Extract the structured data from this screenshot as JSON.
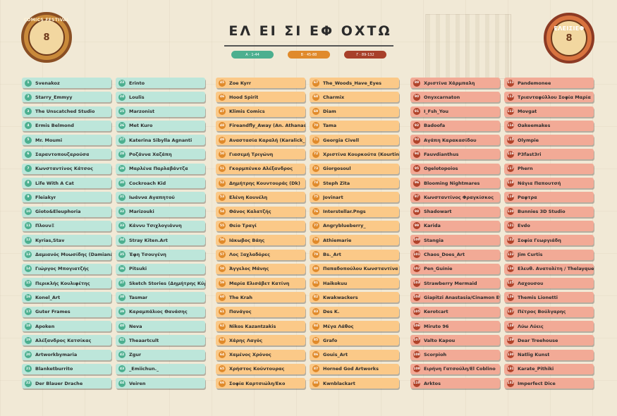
{
  "header": {
    "title": "ΕΛ ΕΙ ΣΙ ΕΦ ΟΧΤΩ",
    "logo_left_text": "COMICS FESTIVAL",
    "logo_left_mark": "8",
    "logo_right_text": "ΕΛΕΙΣΙΕΦ",
    "logo_right_mark": "8"
  },
  "legend": [
    {
      "label": "Α · 1-44",
      "color": "#4caf8f"
    },
    {
      "label": "Β · 45-88",
      "color": "#e08a2b"
    },
    {
      "label": "Γ · 89-132",
      "color": "#a8402a"
    }
  ],
  "columns": [
    {
      "theme": "teal",
      "items": [
        {
          "num": "1",
          "name": "Svenakoz"
        },
        {
          "num": "2",
          "name": "Starry_Emmyy"
        },
        {
          "num": "3",
          "name": "The Unscatched Studio"
        },
        {
          "num": "4",
          "name": "Ermis Belmond"
        },
        {
          "num": "5",
          "name": "Mr. Moumi"
        },
        {
          "num": "6",
          "name": "Σαραντοπουζαρούσα"
        },
        {
          "num": "7",
          "name": "Κωνσταντίνος Κάτσος"
        },
        {
          "num": "8",
          "name": "Life With A Cat"
        },
        {
          "num": "9",
          "name": "Fleiakyr"
        },
        {
          "num": "10",
          "name": "Gioto&Eleuphoria"
        },
        {
          "num": "11",
          "name": "ΠλουνΞ"
        },
        {
          "num": "12",
          "name": "Kyrias,Stav"
        },
        {
          "num": "13",
          "name": "Δαμιανός Μυωσίδης (Damianart)"
        },
        {
          "num": "14",
          "name": "Γιώργος Μπογιατζής"
        },
        {
          "num": "15",
          "name": "Περικλής Κουλιφέτης"
        },
        {
          "num": "16",
          "name": "Konel_Art"
        },
        {
          "num": "17",
          "name": "Guter Frames"
        },
        {
          "num": "18",
          "name": "Apoken"
        },
        {
          "num": "19",
          "name": "Αλέξανδρος Κατσίκας"
        },
        {
          "num": "20",
          "name": "Artworkbymaria"
        },
        {
          "num": "21",
          "name": "Blanketburrito"
        },
        {
          "num": "22",
          "name": "Der Blauer Drache"
        }
      ]
    },
    {
      "theme": "teal",
      "items": [
        {
          "num": "23",
          "name": "Erinto"
        },
        {
          "num": "24",
          "name": "Loulis"
        },
        {
          "num": "25",
          "name": "Marzonist"
        },
        {
          "num": "26",
          "name": "Met Kuro"
        },
        {
          "num": "27",
          "name": "Katerina Sibylla Agnanti"
        },
        {
          "num": "28",
          "name": "Ροζάννα Χαζάπη"
        },
        {
          "num": "29",
          "name": "Μαρλένα Παρλαβάντζα"
        },
        {
          "num": "30",
          "name": "Cockroach Kid"
        },
        {
          "num": "31",
          "name": "Ιωάννα Αγαπητού"
        },
        {
          "num": "32",
          "name": "Marizouki"
        },
        {
          "num": "33",
          "name": "Κάννυ Τσιχλογιάννη"
        },
        {
          "num": "34",
          "name": "Stray Kiten.Art"
        },
        {
          "num": "35",
          "name": "Έφη Τσουγένη"
        },
        {
          "num": "36",
          "name": "Pitsuki"
        },
        {
          "num": "37",
          "name": "Sketch Stories (Δημήτρης Κύρου)"
        },
        {
          "num": "38",
          "name": "Tasmar"
        },
        {
          "num": "39",
          "name": "Καραμπάλιος Θανάσης"
        },
        {
          "num": "40",
          "name": "Neva"
        },
        {
          "num": "41",
          "name": "Theaartcult"
        },
        {
          "num": "42",
          "name": "Zgur"
        },
        {
          "num": "43",
          "name": "_Emiichun._"
        },
        {
          "num": "44",
          "name": "Veiren"
        }
      ]
    },
    {
      "theme": "orange",
      "items": [
        {
          "num": "45",
          "name": "Zoe Kyrr"
        },
        {
          "num": "46",
          "name": "Hood Spirit"
        },
        {
          "num": "47",
          "name": "Klimis Comics"
        },
        {
          "num": "48",
          "name": "Fireandfly_Away (An. Athanasoula)"
        },
        {
          "num": "49",
          "name": "Αναστασία Καραλή (Karalick_)"
        },
        {
          "num": "50",
          "name": "Γιασεμή Τριγώνη"
        },
        {
          "num": "51",
          "name": "Γκορμπένκο Αλέξανδρος"
        },
        {
          "num": "52",
          "name": "Δημήτρης Κουντουράς (Dk)"
        },
        {
          "num": "53",
          "name": "Ελένη Κουνέλη"
        },
        {
          "num": "54",
          "name": "Θάνος Καλατζής"
        },
        {
          "num": "55",
          "name": "Θείο Τραγί"
        },
        {
          "num": "56",
          "name": "Ιάκωβος Βάης"
        },
        {
          "num": "57",
          "name": "Λος Ξαχλαδόρες"
        },
        {
          "num": "58",
          "name": "Άγγελος Μάνης"
        },
        {
          "num": "59",
          "name": "Μαρία Ελισάβετ Κατίνη"
        },
        {
          "num": "60",
          "name": "The Krah"
        },
        {
          "num": "61",
          "name": "Πανάγος"
        },
        {
          "num": "62",
          "name": "Nikos Kazantzakis"
        },
        {
          "num": "63",
          "name": "Χάρης Λαγός"
        },
        {
          "num": "64",
          "name": "Χαμένος Χρόνος"
        },
        {
          "num": "65",
          "name": "Χρήστος Κούντουρας"
        },
        {
          "num": "66",
          "name": "Σοφία Καρτσιώλη/Εκο"
        }
      ]
    },
    {
      "theme": "orange",
      "items": [
        {
          "num": "67",
          "name": "The_Woods_Have_Eyes"
        },
        {
          "num": "68",
          "name": "Charmix"
        },
        {
          "num": "69",
          "name": "Diam"
        },
        {
          "num": "70",
          "name": "Tama"
        },
        {
          "num": "71",
          "name": "Georgia Civell"
        },
        {
          "num": "72",
          "name": "Χριστίνα Κουρκούτα (Kourtina)"
        },
        {
          "num": "73",
          "name": "Giorgosoul"
        },
        {
          "num": "74",
          "name": "Steph Zita"
        },
        {
          "num": "75",
          "name": "Jovinart"
        },
        {
          "num": "76",
          "name": "Interstellar.Pngs"
        },
        {
          "num": "77",
          "name": "Angryblueberry_"
        },
        {
          "num": "78",
          "name": "Athiemarie"
        },
        {
          "num": "79",
          "name": "Bs._Art"
        },
        {
          "num": "80",
          "name": "Παπαδοπούλου Κωνσταντίνα"
        },
        {
          "num": "81",
          "name": "Haikokuu"
        },
        {
          "num": "82",
          "name": "Kwakwackers"
        },
        {
          "num": "83",
          "name": "Des K."
        },
        {
          "num": "84",
          "name": "Μέγα Λάθος"
        },
        {
          "num": "85",
          "name": "Grafo"
        },
        {
          "num": "86",
          "name": "Gouis_Art"
        },
        {
          "num": "87",
          "name": "Horned God Artworks"
        },
        {
          "num": "88",
          "name": "Kwnblackart"
        }
      ]
    },
    {
      "theme": "salmon",
      "items": [
        {
          "num": "89",
          "name": "Χριστίνα Χάρμπαλη"
        },
        {
          "num": "90",
          "name": "Onyxcarnaton"
        },
        {
          "num": "91",
          "name": "I_Fsh_You"
        },
        {
          "num": "92",
          "name": "Badoofa"
        },
        {
          "num": "93",
          "name": "Αγάπη Καρακασίδου"
        },
        {
          "num": "94",
          "name": "Fauvdianthus"
        },
        {
          "num": "95",
          "name": "Ogelotopoios"
        },
        {
          "num": "96",
          "name": "Blooming Nightmares"
        },
        {
          "num": "97",
          "name": "Κωνσταντίνος Φραγκίσκος"
        },
        {
          "num": "98",
          "name": "Shadowart"
        },
        {
          "num": "99",
          "name": "Karida"
        },
        {
          "num": "100",
          "name": "Stangia"
        },
        {
          "num": "101",
          "name": "Chaos_Does_Art"
        },
        {
          "num": "102",
          "name": "Pen_Guinie"
        },
        {
          "num": "103",
          "name": "Strawberry Mermaid"
        },
        {
          "num": "104",
          "name": "Giapitzi Anastasia/Cinamon Eye"
        },
        {
          "num": "105",
          "name": "Kerotcart"
        },
        {
          "num": "106",
          "name": "Miruto 96"
        },
        {
          "num": "107",
          "name": "Valto Kapou"
        },
        {
          "num": "108",
          "name": "Scorpioh"
        },
        {
          "num": "109",
          "name": "Ειρήνη Γατσούλη/El Coblino"
        },
        {
          "num": "110",
          "name": "Arktos"
        }
      ]
    },
    {
      "theme": "salmon",
      "items": [
        {
          "num": "111",
          "name": "Pandemonee"
        },
        {
          "num": "112",
          "name": "Τριανταφύλλου Σοφία Μαρία"
        },
        {
          "num": "113",
          "name": "Movgat"
        },
        {
          "num": "114",
          "name": "Oakeemakes"
        },
        {
          "num": "115",
          "name": "Olympie"
        },
        {
          "num": "116",
          "name": "P3fast3ri"
        },
        {
          "num": "117",
          "name": "Phern"
        },
        {
          "num": "118",
          "name": "Νάγια Παπουτσή"
        },
        {
          "num": "119",
          "name": "Ραφτρα"
        },
        {
          "num": "120",
          "name": "Bunnies 3D Studio"
        },
        {
          "num": "121",
          "name": "Evdo"
        },
        {
          "num": "122",
          "name": "Σοφία Γεωργιάδη"
        },
        {
          "num": "123",
          "name": "Jim Curtis"
        },
        {
          "num": "124",
          "name": "Ελευθ. Ανατολίτη / Thelayquest"
        },
        {
          "num": "125",
          "name": "Λαχουσου"
        },
        {
          "num": "126",
          "name": "Themis Lionetti"
        },
        {
          "num": "127",
          "name": "Πέτρος Βούλγαρης"
        },
        {
          "num": "128",
          "name": "Λύω Λύεις"
        },
        {
          "num": "129",
          "name": "Dear Treehouse"
        },
        {
          "num": "130",
          "name": "Natlig Kunst"
        },
        {
          "num": "131",
          "name": "Karate_Pithiki"
        },
        {
          "num": "132",
          "name": "Imperfect Dice"
        }
      ]
    }
  ]
}
